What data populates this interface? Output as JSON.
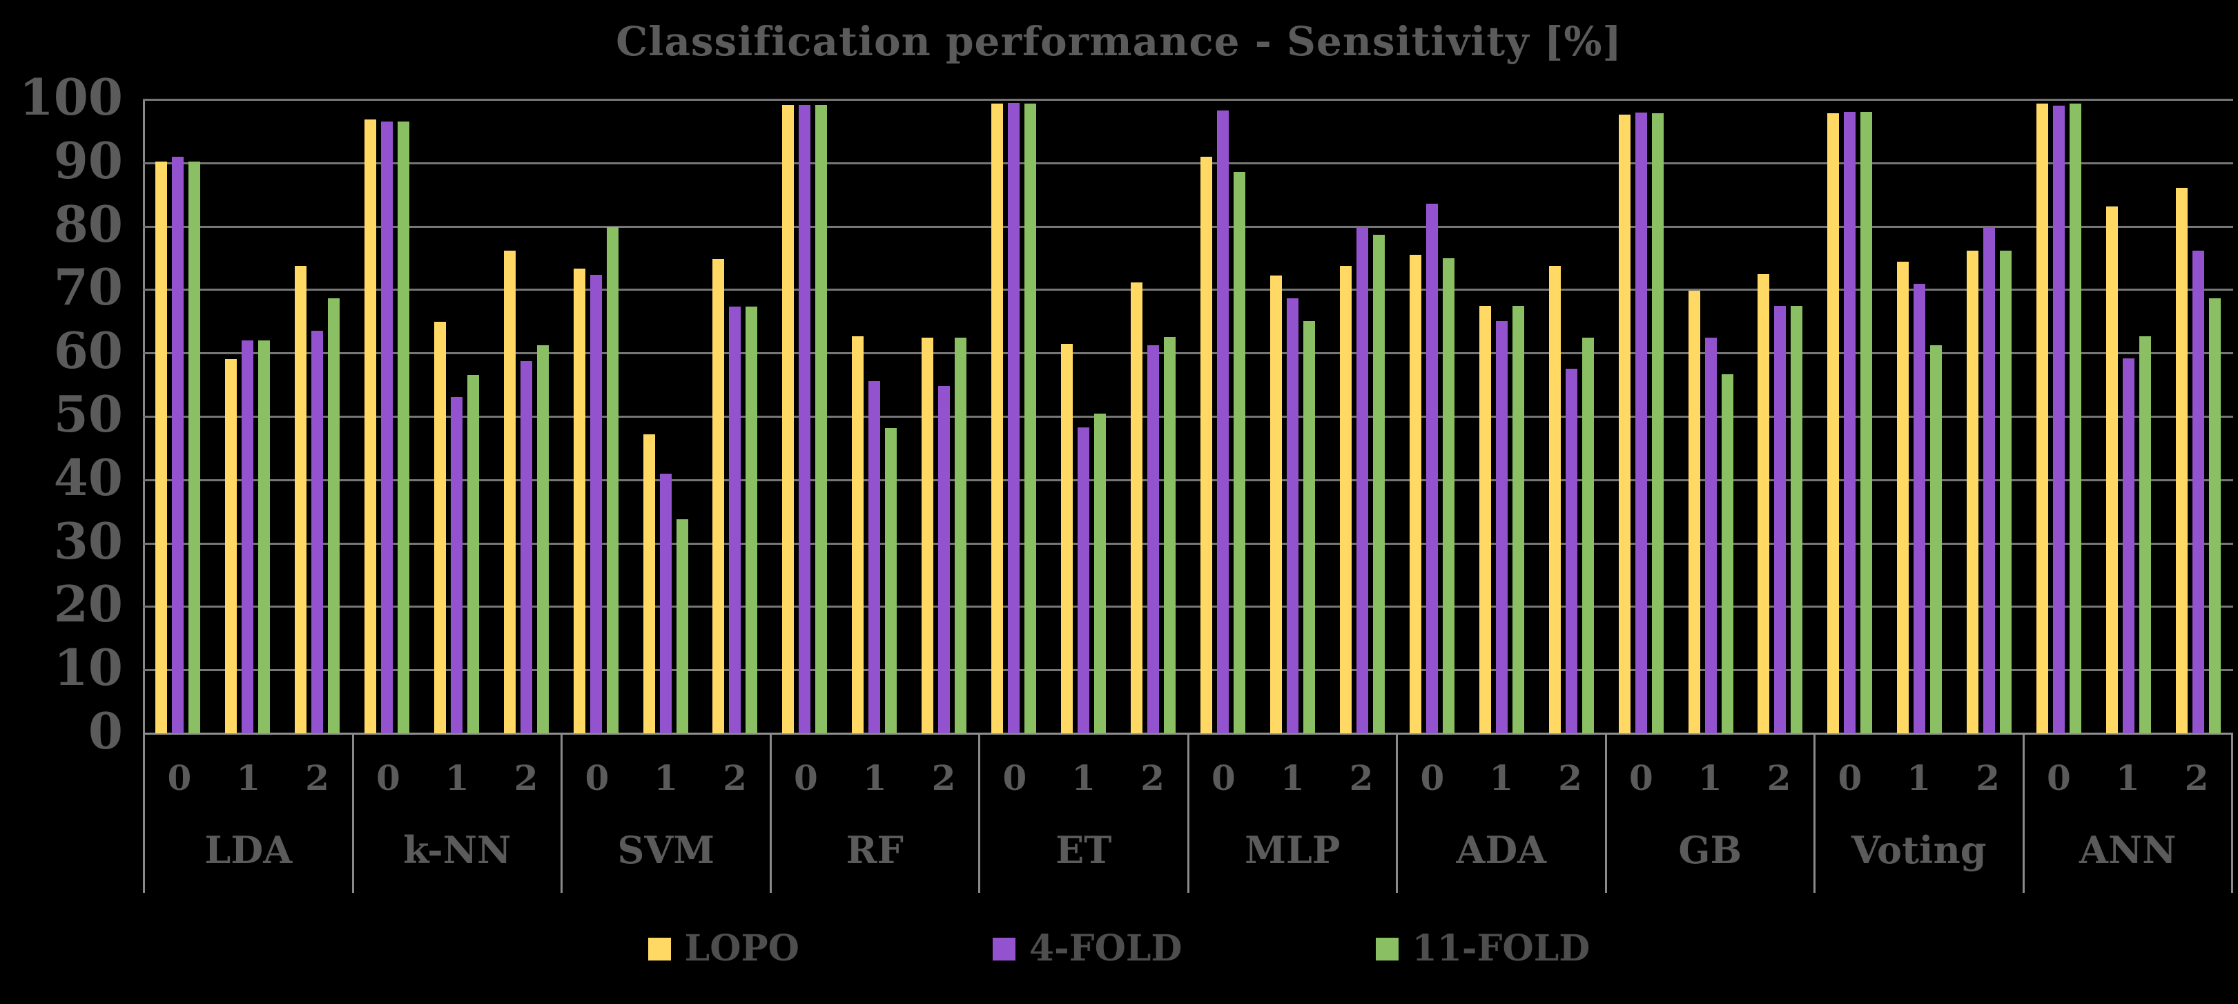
{
  "chart_data": {
    "type": "bar",
    "title": "Classification performance - Sensitivity [%]",
    "ylabel": "",
    "xlabel": "",
    "ylim": [
      0,
      100
    ],
    "yticks": [
      0,
      10,
      20,
      30,
      40,
      50,
      60,
      70,
      80,
      90,
      100
    ],
    "grid": true,
    "legend_position": "bottom",
    "categories": [
      "LDA",
      "k-NN",
      "SVM",
      "RF",
      "ET",
      "MLP",
      "ADA",
      "GB",
      "Voting",
      "ANN"
    ],
    "subcategories": [
      "0",
      "1",
      "2"
    ],
    "series": [
      {
        "name": "LOPO",
        "color": "#FFD964",
        "values": [
          [
            90.2,
            59.0,
            73.7
          ],
          [
            96.8,
            64.9,
            76.1
          ],
          [
            73.3,
            47.2,
            74.8
          ],
          [
            99.1,
            62.6,
            62.4
          ],
          [
            99.4,
            61.4,
            71.1
          ],
          [
            91.0,
            72.2,
            73.8
          ],
          [
            75.5,
            67.4,
            73.8
          ],
          [
            97.6,
            69.8,
            72.4
          ],
          [
            97.8,
            74.4,
            76.1
          ],
          [
            99.3,
            83.1,
            86.1
          ]
        ]
      },
      {
        "name": "4-FOLD",
        "color": "#9453CE",
        "values": [
          [
            91.0,
            62.0,
            63.5
          ],
          [
            96.5,
            53.0,
            58.7
          ],
          [
            72.3,
            41.0,
            67.3
          ],
          [
            99.1,
            55.6,
            54.8
          ],
          [
            99.5,
            48.3,
            61.2
          ],
          [
            98.3,
            68.6,
            79.8
          ],
          [
            83.5,
            65.0,
            57.5
          ],
          [
            97.9,
            62.4,
            67.4
          ],
          [
            98.0,
            70.9,
            79.8
          ],
          [
            99.0,
            59.1,
            76.1
          ]
        ]
      },
      {
        "name": "11-FOLD",
        "color": "#8AC063",
        "values": [
          [
            90.2,
            62.0,
            68.6
          ],
          [
            96.5,
            56.5,
            61.2
          ],
          [
            79.8,
            33.8,
            67.3
          ],
          [
            99.1,
            48.2,
            62.4
          ],
          [
            99.4,
            50.4,
            62.5
          ],
          [
            88.6,
            65.0,
            78.6
          ],
          [
            75.0,
            67.4,
            62.4
          ],
          [
            97.8,
            56.6,
            67.4
          ],
          [
            98.0,
            61.2,
            76.1
          ],
          [
            99.3,
            62.6,
            68.6
          ]
        ]
      }
    ]
  },
  "colors": {
    "background": "#000000",
    "title_text": "#5B5B5B",
    "axis_text": "#5B5B5B",
    "legend_text": "#4E4E4E",
    "gridline": "#767676",
    "axis_line": "#8A8A8A"
  }
}
